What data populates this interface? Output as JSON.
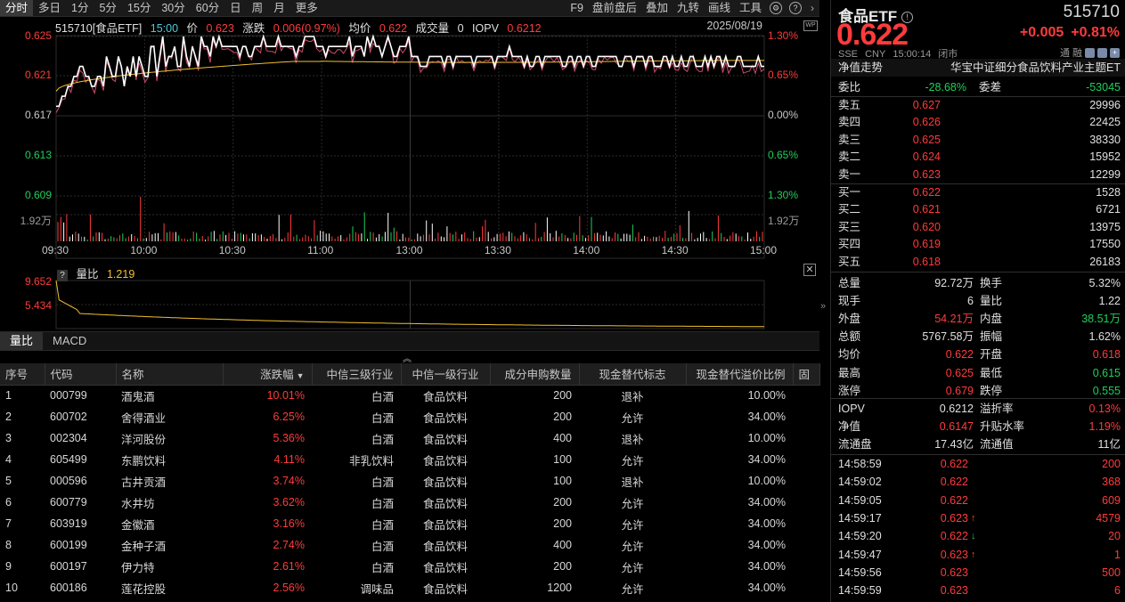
{
  "toolbar": {
    "left": [
      "分时",
      "多日",
      "1分",
      "5分",
      "15分",
      "30分",
      "60分",
      "日",
      "周",
      "月",
      "更多"
    ],
    "right": [
      "F9",
      "盘前盘后",
      "叠加",
      "九转",
      "画线",
      "工具"
    ],
    "active_index": 0
  },
  "chart": {
    "symbol": "515710[食品ETF]",
    "time": "15:00",
    "price_label": "价",
    "price": "0.623",
    "change_label": "涨跌",
    "change": "0.006(0.97%)",
    "avg_label": "均价",
    "avg": "0.622",
    "volume_label": "成交量",
    "volume": "0",
    "iopv_label": "IOPV",
    "iopv": "0.6212",
    "date": "2025/08/19",
    "y_left": [
      "0.625",
      "0.621",
      "0.617",
      "0.613",
      "0.609"
    ],
    "y_right": [
      "1.30%",
      "0.65%",
      "0.00%",
      "0.65%",
      "1.30%"
    ],
    "vol_label": "1.92万",
    "x_ticks": [
      "09:30",
      "10:00",
      "10:30",
      "11:00",
      "13:00",
      "13:30",
      "14:00",
      "14:30",
      "15:00"
    ]
  },
  "volume_ratio": {
    "label": "量比",
    "value": "1.219",
    "y_ticks": [
      "9.652",
      "5.434"
    ]
  },
  "tabs": [
    "量比",
    "MACD"
  ],
  "table": {
    "headers": [
      "序号",
      "代码",
      "名称",
      "涨跌幅",
      "中信三级行业",
      "中信一级行业",
      "成分申购数量",
      "现金替代标志",
      "现金替代溢价比例",
      "固"
    ],
    "rows": [
      [
        "1",
        "000799",
        "酒鬼酒",
        "10.01%",
        "白酒",
        "食品饮料",
        "200",
        "退补",
        "10.00%"
      ],
      [
        "2",
        "600702",
        "舍得酒业",
        "6.25%",
        "白酒",
        "食品饮料",
        "200",
        "允许",
        "34.00%"
      ],
      [
        "3",
        "002304",
        "洋河股份",
        "5.36%",
        "白酒",
        "食品饮料",
        "400",
        "退补",
        "10.00%"
      ],
      [
        "4",
        "605499",
        "东鹏饮料",
        "4.11%",
        "非乳饮料",
        "食品饮料",
        "100",
        "允许",
        "34.00%"
      ],
      [
        "5",
        "000596",
        "古井贡酒",
        "3.74%",
        "白酒",
        "食品饮料",
        "100",
        "退补",
        "10.00%"
      ],
      [
        "6",
        "600779",
        "水井坊",
        "3.62%",
        "白酒",
        "食品饮料",
        "200",
        "允许",
        "34.00%"
      ],
      [
        "7",
        "603919",
        "金徽酒",
        "3.16%",
        "白酒",
        "食品饮料",
        "200",
        "允许",
        "34.00%"
      ],
      [
        "8",
        "600199",
        "金种子酒",
        "2.74%",
        "白酒",
        "食品饮料",
        "400",
        "允许",
        "34.00%"
      ],
      [
        "9",
        "600197",
        "伊力特",
        "2.61%",
        "白酒",
        "食品饮料",
        "200",
        "允许",
        "34.00%"
      ],
      [
        "10",
        "600186",
        "莲花控股",
        "2.56%",
        "调味品",
        "食品饮料",
        "1200",
        "允许",
        "34.00%"
      ]
    ]
  },
  "quote": {
    "name": "食品ETF",
    "code": "515710",
    "price": "0.622",
    "change": "+0.005",
    "change_pct": "+0.81%",
    "exchange": "SSE",
    "currency": "CNY",
    "time": "15:00:14",
    "status": "闭市",
    "badges": [
      "通",
      "融"
    ],
    "nav_trend": "净值走势",
    "index_name": "华宝中证细分食品饮料产业主题ET",
    "weibi_label": "委比",
    "weibi": "-28.68%",
    "weicha_label": "委差",
    "weicha": "-53045",
    "asks": [
      {
        "label": "卖五",
        "price": "0.627",
        "vol": "29996"
      },
      {
        "label": "卖四",
        "price": "0.626",
        "vol": "22425"
      },
      {
        "label": "卖三",
        "price": "0.625",
        "vol": "38330"
      },
      {
        "label": "卖二",
        "price": "0.624",
        "vol": "15952"
      },
      {
        "label": "卖一",
        "price": "0.623",
        "vol": "12299"
      }
    ],
    "bids": [
      {
        "label": "买一",
        "price": "0.622",
        "vol": "1528"
      },
      {
        "label": "买二",
        "price": "0.621",
        "vol": "6721"
      },
      {
        "label": "买三",
        "price": "0.620",
        "vol": "13975"
      },
      {
        "label": "买四",
        "price": "0.619",
        "vol": "17550"
      },
      {
        "label": "买五",
        "price": "0.618",
        "vol": "26183"
      }
    ],
    "stats": [
      {
        "l1": "总量",
        "v1": "92.72万",
        "c1": "w",
        "l2": "换手",
        "v2": "5.32%",
        "c2": "w"
      },
      {
        "l1": "现手",
        "v1": "6",
        "c1": "w",
        "l2": "量比",
        "v2": "1.22",
        "c2": "w"
      },
      {
        "l1": "外盘",
        "v1": "54.21万",
        "c1": "r",
        "l2": "内盘",
        "v2": "38.51万",
        "c2": "g"
      },
      {
        "l1": "总额",
        "v1": "5767.58万",
        "c1": "w",
        "l2": "振幅",
        "v2": "1.62%",
        "c2": "w"
      },
      {
        "l1": "均价",
        "v1": "0.622",
        "c1": "r",
        "l2": "开盘",
        "v2": "0.618",
        "c2": "r"
      },
      {
        "l1": "最高",
        "v1": "0.625",
        "c1": "r",
        "l2": "最低",
        "v2": "0.615",
        "c2": "g"
      },
      {
        "l1": "涨停",
        "v1": "0.679",
        "c1": "r",
        "l2": "跌停",
        "v2": "0.555",
        "c2": "g"
      }
    ],
    "stats2": [
      {
        "l1": "IOPV",
        "v1": "0.6212",
        "c1": "w",
        "l2": "溢折率",
        "v2": "0.13%",
        "c2": "r"
      },
      {
        "l1": "净值",
        "v1": "0.6147",
        "c1": "r",
        "l2": "升贴水率",
        "v2": "1.19%",
        "c2": "r"
      },
      {
        "l1": "流通盘",
        "v1": "17.43亿",
        "c1": "w",
        "l2": "流通值",
        "v2": "11亿",
        "c2": "w"
      }
    ],
    "ticks": [
      {
        "time": "14:58:59",
        "price": "0.622",
        "dir": "",
        "vol": "200"
      },
      {
        "time": "14:59:02",
        "price": "0.622",
        "dir": "",
        "vol": "368"
      },
      {
        "time": "14:59:05",
        "price": "0.622",
        "dir": "",
        "vol": "609"
      },
      {
        "time": "14:59:17",
        "price": "0.623",
        "dir": "up",
        "vol": "4579"
      },
      {
        "time": "14:59:20",
        "price": "0.622",
        "dir": "down",
        "vol": "20"
      },
      {
        "time": "14:59:47",
        "price": "0.623",
        "dir": "up",
        "vol": "1"
      },
      {
        "time": "14:59:56",
        "price": "0.623",
        "dir": "",
        "vol": "500"
      },
      {
        "time": "14:59:59",
        "price": "0.623",
        "dir": "",
        "vol": "6"
      }
    ]
  },
  "colors": {
    "up": "#ff3b3b",
    "down": "#1ed05a",
    "price_line": "#ffffff",
    "avg_line": "#f2c12e",
    "iopv_line": "#d04a6a"
  }
}
